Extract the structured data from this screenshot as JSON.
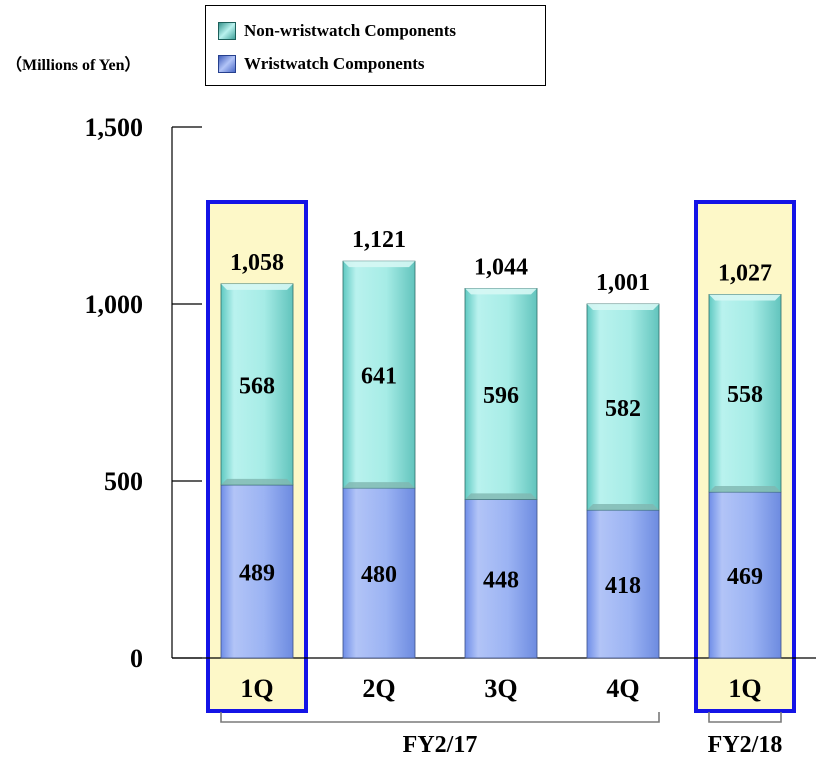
{
  "unit_label": "（Millions of Yen）",
  "legend": [
    {
      "label": "Non-wristwatch Components",
      "color": "#9fe8e3"
    },
    {
      "label": "Wristwatch Components",
      "color": "#8fa6f0"
    }
  ],
  "colors": {
    "non_wristwatch": "#a6ece6",
    "wristwatch": "#9bb3f3",
    "highlight_fill": "#fdf8c8",
    "highlight_border": "#1414e6",
    "bracket": "#7a7a7a"
  },
  "chart_data": {
    "type": "bar",
    "stacked": true,
    "categories": [
      "1Q",
      "2Q",
      "3Q",
      "4Q",
      "1Q"
    ],
    "series": [
      {
        "name": "Wristwatch Components",
        "values": [
          489,
          480,
          448,
          418,
          469
        ]
      },
      {
        "name": "Non-wristwatch Components",
        "values": [
          568,
          641,
          596,
          582,
          558
        ]
      }
    ],
    "totals": [
      "1,058",
      "1,121",
      "1,044",
      "1,001",
      "1,027"
    ],
    "ylim": [
      0,
      1500
    ],
    "yticks": [
      {
        "value": 0,
        "label": "0"
      },
      {
        "value": 500,
        "label": "500"
      },
      {
        "value": 1000,
        "label": "1,000"
      },
      {
        "value": 1500,
        "label": "1,500"
      }
    ],
    "highlighted_categories": [
      0,
      4
    ],
    "groups": [
      {
        "label": "FY2/17",
        "from": 0,
        "to": 3
      },
      {
        "label": "FY2/18",
        "from": 4,
        "to": 4
      }
    ],
    "grid": false
  }
}
